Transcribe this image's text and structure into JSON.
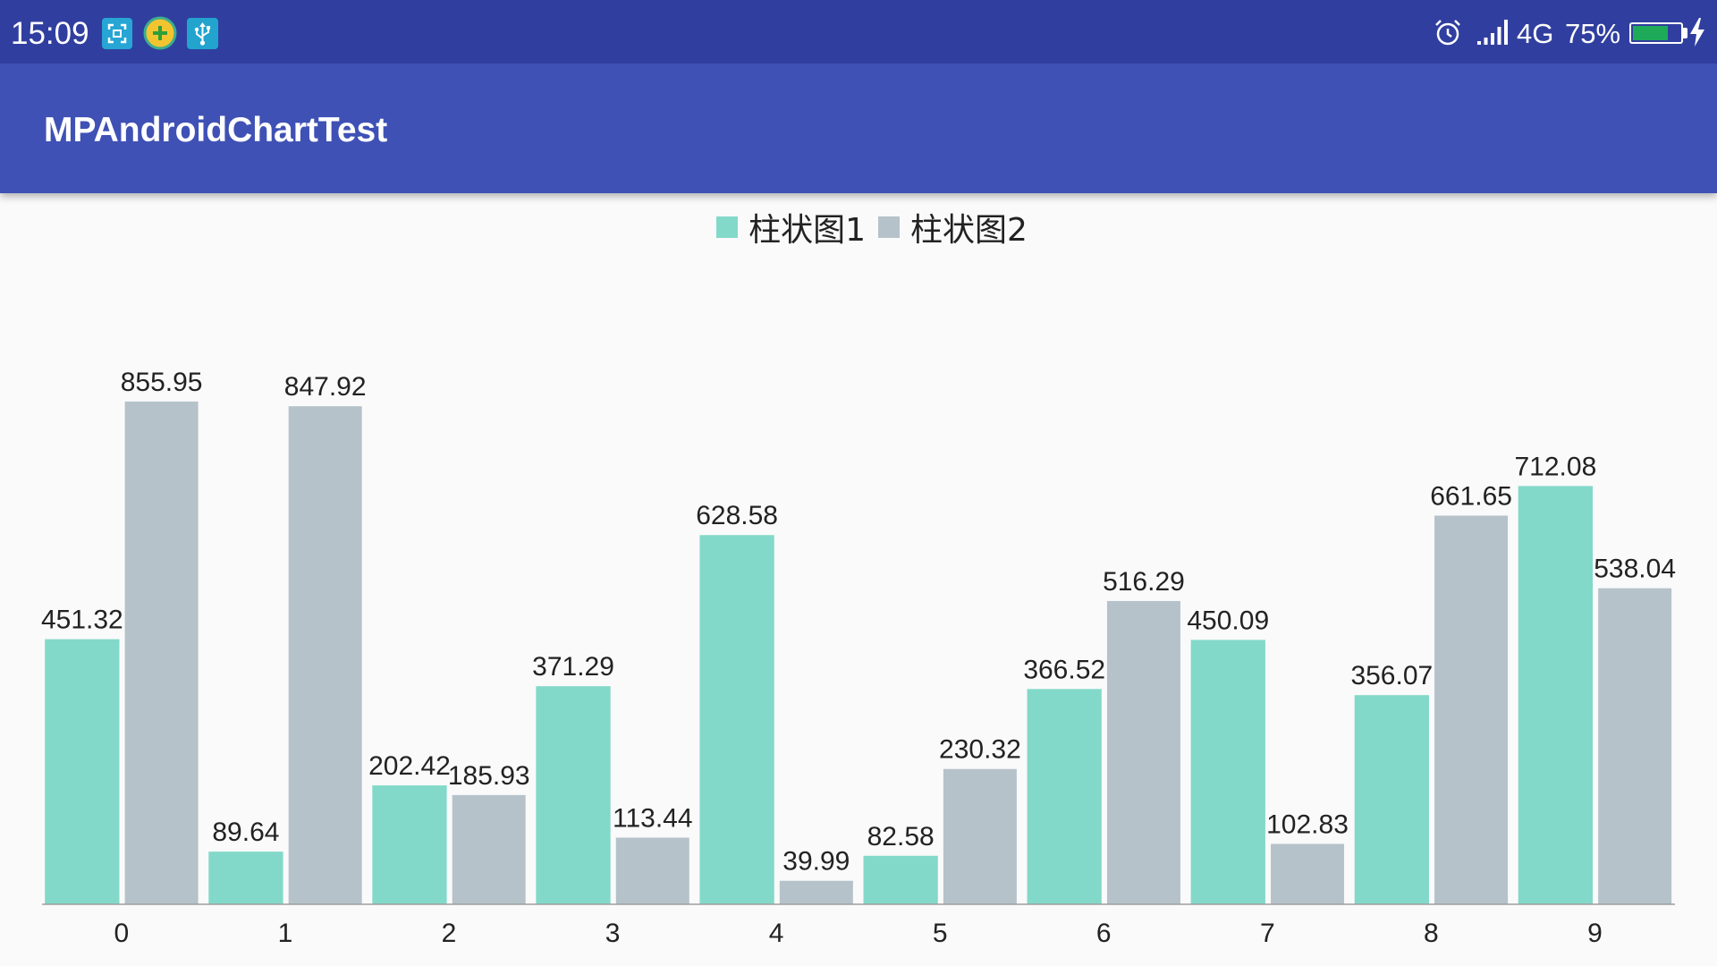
{
  "status_bar": {
    "time": "15:09",
    "notification_icons": [
      "screenshot-icon",
      "add-circle-icon",
      "usb-icon"
    ],
    "right_icons": [
      "alarm-icon",
      "signal-icon",
      "battery-icon",
      "charging-icon"
    ],
    "network": "4G",
    "battery_label": "75%",
    "battery_level": 75,
    "background": "#303F9F"
  },
  "app_bar": {
    "title": "MPAndroidChartTest",
    "background": "#3F51B5"
  },
  "chart_data": {
    "type": "bar",
    "title": "",
    "xlabel": "",
    "ylabel": "",
    "legend": "top-center",
    "grid": false,
    "categories": [
      "0",
      "1",
      "2",
      "3",
      "4",
      "5",
      "6",
      "7",
      "8",
      "9"
    ],
    "series": [
      {
        "name": "柱状图1",
        "color": "#83D9C9",
        "values": [
          451.32,
          89.64,
          202.42,
          371.29,
          628.58,
          82.58,
          366.52,
          450.09,
          356.07,
          712.08
        ]
      },
      {
        "name": "柱状图2",
        "color": "#B5C2CA",
        "values": [
          855.95,
          847.92,
          185.93,
          113.44,
          39.99,
          230.32,
          516.29,
          102.83,
          661.65,
          538.04
        ]
      }
    ]
  }
}
